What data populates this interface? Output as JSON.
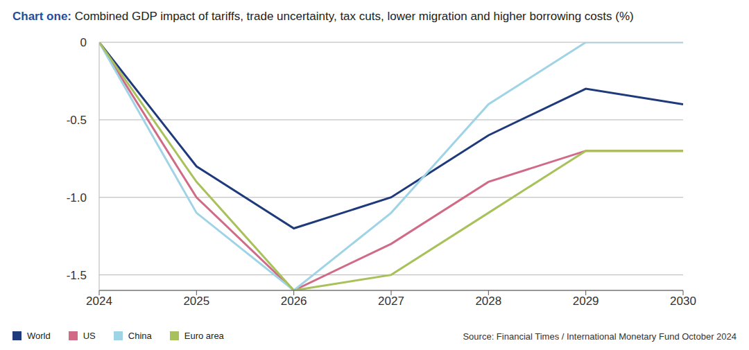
{
  "chart_data": {
    "type": "line",
    "title": "Chart one: Combined GDP impact of tariffs, trade uncertainty, tax cuts, lower migration and higher borrowing costs (%)",
    "annotations": [
      "Source: Financial Times / International Monetary Fund October 2024"
    ],
    "x": [
      2024,
      2025,
      2026,
      2027,
      2028,
      2029,
      2030
    ],
    "xlim": [
      2024,
      2030
    ],
    "xticks": [
      2024,
      2025,
      2026,
      2027,
      2028,
      2029,
      2030
    ],
    "ylim": [
      -1.6,
      0
    ],
    "yticks": [
      0,
      -0.5,
      {
        "value": -1,
        "label": "-1.0"
      },
      -1.5
    ],
    "grid": true,
    "legend": "bottom left",
    "series": [
      {
        "name": "World",
        "color": "#1f3a7a",
        "values": [
          0,
          -0.8,
          -1.2,
          -1.0,
          -0.6,
          -0.3,
          -0.4
        ]
      },
      {
        "name": "US",
        "color": "#d06a86",
        "values": [
          0,
          -1.0,
          -1.6,
          -1.3,
          -0.9,
          -0.7,
          -0.7
        ]
      },
      {
        "name": "China",
        "color": "#9fd3e6",
        "values": [
          0,
          -1.1,
          -1.6,
          -1.1,
          -0.4,
          0,
          0
        ]
      },
      {
        "name": "Euro area",
        "color": "#a8c15a",
        "values": [
          0,
          -0.9,
          -1.6,
          -1.5,
          -1.1,
          -0.7,
          -0.7
        ]
      }
    ]
  }
}
